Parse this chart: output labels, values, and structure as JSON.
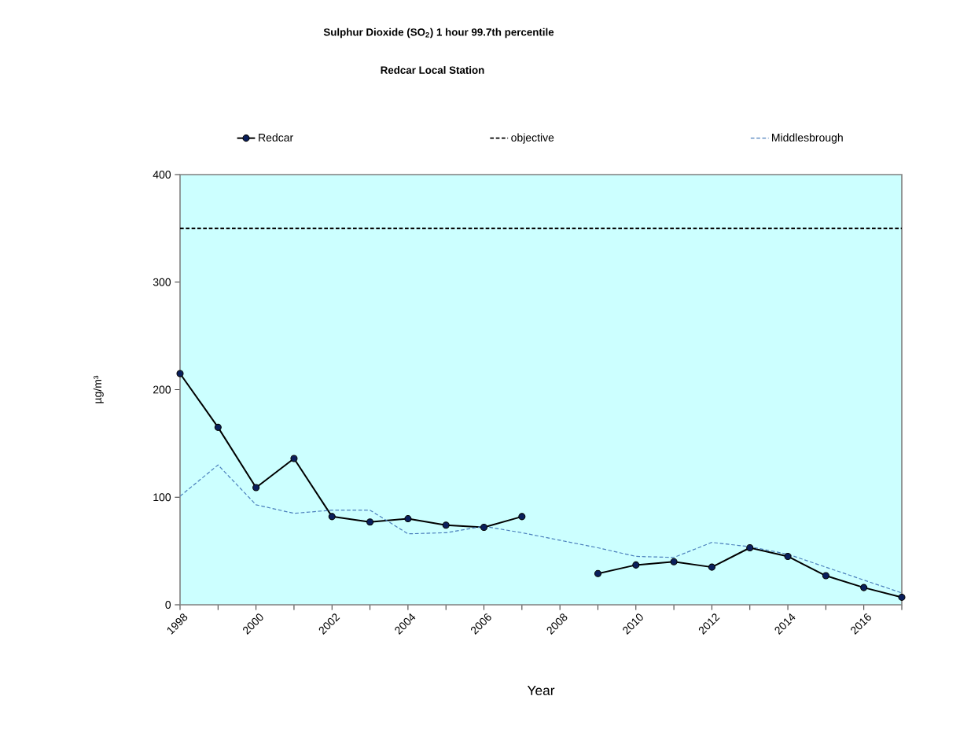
{
  "chart_data": {
    "type": "line",
    "title": "Sulphur Dioxide (SO$_{2}$) 1 hour 99.7th percentile",
    "subtitle": "Redcar Local Station",
    "xlabel": "Year",
    "ylabel": "µg/m³",
    "x": [
      1998,
      1999,
      2000,
      2001,
      2002,
      2003,
      2004,
      2005,
      2006,
      2007,
      2008,
      2009,
      2010,
      2011,
      2012,
      2013,
      2014,
      2015,
      2016,
      2017
    ],
    "series": [
      {
        "name": "Redcar",
        "color": "#000000",
        "marker": "circle",
        "line_style": "solid",
        "values": [
          215,
          165,
          109,
          136,
          82,
          77,
          80,
          74,
          72,
          82,
          null,
          29,
          37,
          40,
          35,
          53,
          45,
          27,
          16,
          7
        ]
      },
      {
        "name": "objective",
        "color": "#000000",
        "marker": "none",
        "line_style": "dashed",
        "x": [
          1998,
          2017
        ],
        "values": [
          350,
          350
        ]
      },
      {
        "name": "Middlesbrough",
        "color": "#4a7ebb",
        "marker": "none",
        "line_style": "dashed",
        "values": [
          101,
          130,
          93,
          85,
          88,
          88,
          66,
          67,
          73,
          67,
          60,
          53,
          45,
          44,
          58,
          54,
          47,
          35,
          23,
          11
        ]
      }
    ],
    "xlim": [
      1998,
      2017
    ],
    "ylim": [
      0,
      400
    ],
    "xticks": [
      {
        "value": 1998,
        "label": "1998"
      },
      {
        "value": 1999,
        "label": null
      },
      {
        "value": 2000,
        "label": "2000"
      },
      {
        "value": 2001,
        "label": null
      },
      {
        "value": 2002,
        "label": "2002"
      },
      {
        "value": 2003,
        "label": null
      },
      {
        "value": 2004,
        "label": "2004"
      },
      {
        "value": 2005,
        "label": null
      },
      {
        "value": 2006,
        "label": "2006"
      },
      {
        "value": 2007,
        "label": null
      },
      {
        "value": 2008,
        "label": "2008"
      },
      {
        "value": 2009,
        "label": null
      },
      {
        "value": 2010,
        "label": "2010"
      },
      {
        "value": 2011,
        "label": null
      },
      {
        "value": 2012,
        "label": "2012"
      },
      {
        "value": 2013,
        "label": null
      },
      {
        "value": 2014,
        "label": "2014"
      },
      {
        "value": 2015,
        "label": null
      },
      {
        "value": 2016,
        "label": "2016"
      },
      {
        "value": 2017,
        "label": null
      }
    ],
    "yticks": [
      0,
      100,
      200,
      300,
      400
    ],
    "grid": false,
    "legend": "top"
  }
}
